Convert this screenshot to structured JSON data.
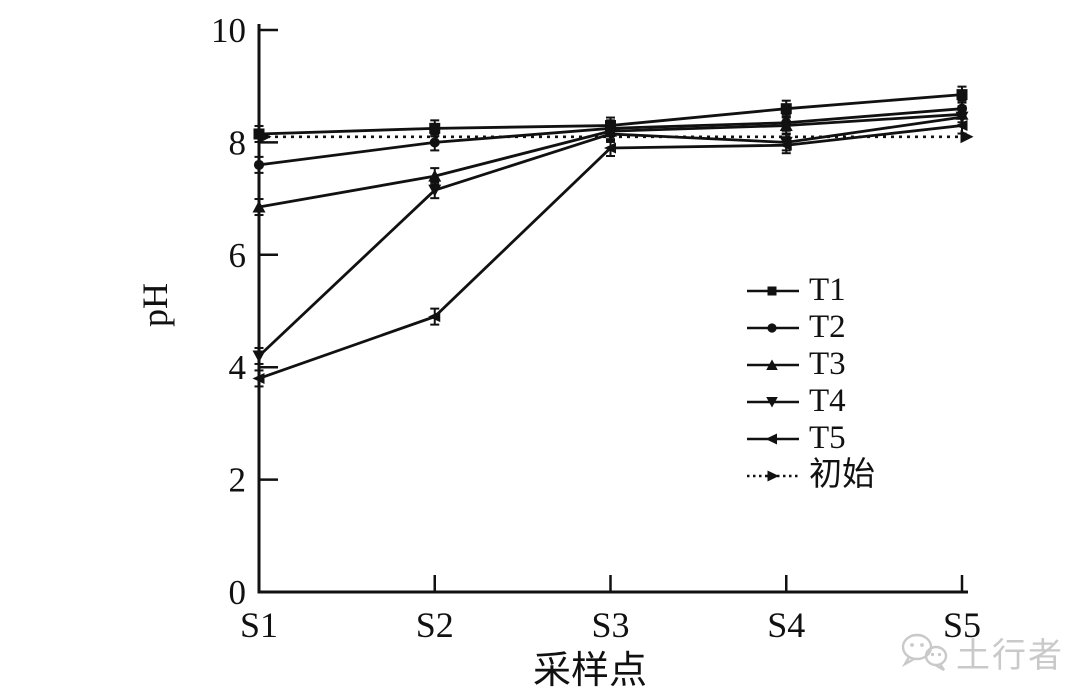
{
  "figure": {
    "background": "#ffffff",
    "ink_color": "#111111"
  },
  "chart_data": {
    "type": "line",
    "title": "",
    "xlabel": "采样点",
    "ylabel": "pH",
    "categories": [
      "S1",
      "S2",
      "S3",
      "S4",
      "S5"
    ],
    "y_ticks": [
      0,
      2,
      4,
      6,
      8,
      10
    ],
    "ylim": [
      0,
      10
    ],
    "grid": false,
    "legend_position": "inside-right",
    "series": [
      {
        "name": "T1",
        "marker": "square",
        "line": "solid",
        "values": [
          8.15,
          8.25,
          8.3,
          8.6,
          8.85
        ]
      },
      {
        "name": "T2",
        "marker": "circle",
        "line": "solid",
        "values": [
          7.6,
          8.0,
          8.25,
          8.35,
          8.6
        ]
      },
      {
        "name": "T3",
        "marker": "triangle-up",
        "line": "solid",
        "values": [
          6.85,
          7.4,
          8.2,
          8.3,
          8.5
        ]
      },
      {
        "name": "T4",
        "marker": "triangle-down",
        "line": "solid",
        "values": [
          4.2,
          7.15,
          8.15,
          8.0,
          8.45
        ]
      },
      {
        "name": "T5",
        "marker": "triangle-left",
        "line": "solid",
        "values": [
          3.8,
          4.9,
          7.9,
          7.95,
          8.3
        ]
      },
      {
        "name": "初始",
        "marker": "triangle-right",
        "line": "dotted",
        "values": [
          8.1,
          8.1,
          8.1,
          8.1,
          8.1
        ]
      }
    ]
  },
  "watermark": {
    "text": "土行者",
    "icon": "wechat-bubbles-icon",
    "color": "#c9c9c9"
  }
}
